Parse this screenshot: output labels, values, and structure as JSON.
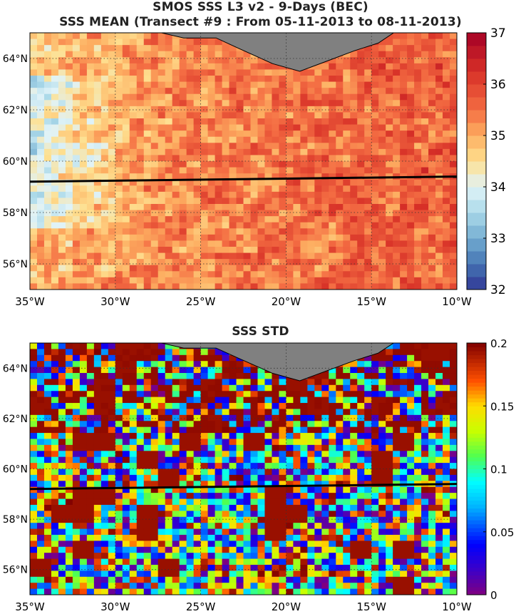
{
  "figure": {
    "title_line1": "SMOS SSS L3 v2 - 9-Days (BEC)",
    "title_line2": "SSS MEAN (Transect #9 : From 05-11-2013 to 08-11-2013)",
    "title_panel2": "SSS STD"
  },
  "chart_data": [
    {
      "type": "heatmap",
      "title": "SSS MEAN (Transect #9 : From 05-11-2013 to 08-11-2013)",
      "x_ticks": [
        "35°W",
        "30°W",
        "25°W",
        "20°W",
        "15°W",
        "10°W"
      ],
      "x_tick_values": [
        -35,
        -30,
        -25,
        -20,
        -15,
        -10
      ],
      "y_ticks": [
        "56°N",
        "58°N",
        "60°N",
        "62°N",
        "64°N"
      ],
      "y_tick_values": [
        56,
        58,
        60,
        62,
        64
      ],
      "xlim": [
        -35,
        -10
      ],
      "ylim": [
        55,
        65
      ],
      "colorbar": {
        "ticks": [
          "32",
          "33",
          "34",
          "35",
          "36",
          "37"
        ],
        "range": [
          32,
          37
        ],
        "colormap": "RdYlBu_r"
      },
      "transect": {
        "lon": [
          -35,
          -10
        ],
        "lat": [
          59.2,
          59.4
        ]
      },
      "grid": true,
      "land_mask": "Iceland coast (top center)"
    },
    {
      "type": "heatmap",
      "title": "SSS STD",
      "x_ticks": [
        "35°W",
        "30°W",
        "25°W",
        "20°W",
        "15°W",
        "10°W"
      ],
      "x_tick_values": [
        -35,
        -30,
        -25,
        -20,
        -15,
        -10
      ],
      "y_ticks": [
        "56°N",
        "58°N",
        "60°N",
        "62°N",
        "64°N"
      ],
      "y_tick_values": [
        56,
        58,
        60,
        62,
        64
      ],
      "xlim": [
        -35,
        -10
      ],
      "ylim": [
        55,
        65
      ],
      "colorbar": {
        "ticks": [
          "0",
          "0.05",
          "0.1",
          "0.15",
          "0.2"
        ],
        "range": [
          0,
          0.2
        ],
        "colormap": "jet"
      },
      "transect": {
        "lon": [
          -35,
          -10
        ],
        "lat": [
          59.2,
          59.4
        ]
      },
      "grid": true,
      "land_mask": "Iceland coast (top center)"
    }
  ]
}
